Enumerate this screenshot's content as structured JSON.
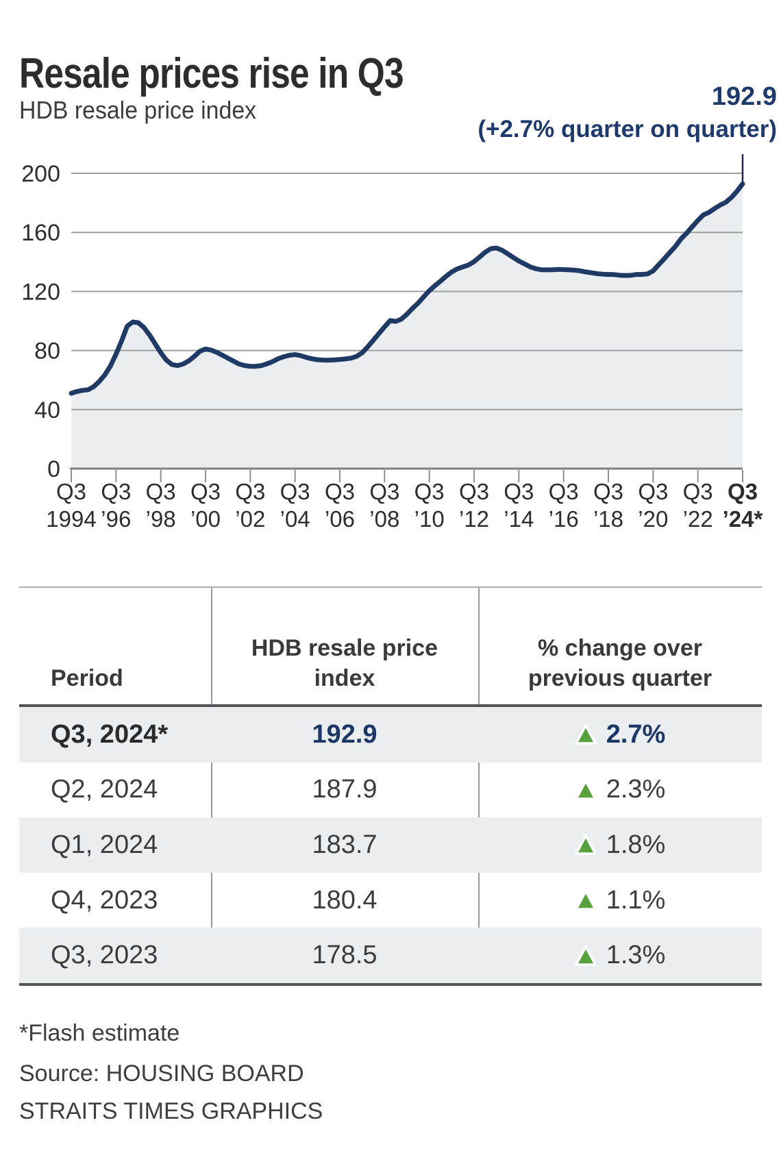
{
  "title": "Resale prices rise in Q3",
  "subtitle": "HDB resale price index",
  "annotation": {
    "value": "192.9",
    "note": "(+2.7% quarter on quarter)",
    "color": "#1e3a6c"
  },
  "chart_data": {
    "type": "area",
    "title": "HDB resale price index",
    "x_start": "Q3 1994",
    "x_end": "Q3 2024",
    "frequency": "quarterly",
    "ylim": [
      0,
      215
    ],
    "y_ticks": [
      0,
      40,
      80,
      120,
      160,
      200
    ],
    "grid": true,
    "legend": "none",
    "x_tick_labels": [
      {
        "line1": "Q3",
        "line2": "1994",
        "bold": false
      },
      {
        "line1": "Q3",
        "line2": "’96",
        "bold": false
      },
      {
        "line1": "Q3",
        "line2": "’98",
        "bold": false
      },
      {
        "line1": "Q3",
        "line2": "’00",
        "bold": false
      },
      {
        "line1": "Q3",
        "line2": "’02",
        "bold": false
      },
      {
        "line1": "Q3",
        "line2": "’04",
        "bold": false
      },
      {
        "line1": "Q3",
        "line2": "’06",
        "bold": false
      },
      {
        "line1": "Q3",
        "line2": "’08",
        "bold": false
      },
      {
        "line1": "Q3",
        "line2": "’10",
        "bold": false
      },
      {
        "line1": "Q3",
        "line2": "’12",
        "bold": false
      },
      {
        "line1": "Q3",
        "line2": "’14",
        "bold": false
      },
      {
        "line1": "Q3",
        "line2": "’16",
        "bold": false
      },
      {
        "line1": "Q3",
        "line2": "’18",
        "bold": false
      },
      {
        "line1": "Q3",
        "line2": "’20",
        "bold": false
      },
      {
        "line1": "Q3",
        "line2": "’22",
        "bold": false
      },
      {
        "line1": "Q3",
        "line2": "’24*",
        "bold": true
      }
    ],
    "series": [
      {
        "name": "HDB resale price index",
        "values": [
          51.0,
          52.2,
          53.0,
          53.4,
          55.5,
          59.0,
          63.5,
          69.5,
          77.5,
          86.5,
          96.5,
          99.3,
          98.8,
          95.5,
          90.5,
          84.5,
          78.5,
          73.5,
          70.5,
          69.8,
          70.8,
          73.0,
          76.0,
          79.5,
          81.0,
          80.3,
          78.8,
          76.8,
          74.8,
          72.8,
          70.8,
          69.8,
          69.3,
          69.3,
          69.8,
          71.0,
          72.5,
          74.5,
          75.8,
          76.8,
          77.2,
          76.5,
          75.3,
          74.4,
          73.8,
          73.5,
          73.4,
          73.6,
          73.9,
          74.3,
          74.8,
          76.0,
          78.5,
          82.5,
          87.0,
          91.5,
          96.0,
          100.3,
          99.7,
          101.2,
          104.6,
          108.6,
          112.1,
          116.4,
          120.5,
          123.9,
          127.0,
          130.3,
          133.2,
          135.3,
          136.6,
          137.9,
          140.2,
          143.4,
          146.6,
          149.0,
          149.4,
          147.9,
          145.5,
          143.0,
          140.6,
          138.7,
          136.7,
          135.4,
          134.7,
          134.6,
          134.7,
          134.9,
          134.8,
          134.6,
          134.4,
          133.9,
          133.2,
          132.6,
          132.0,
          131.7,
          131.5,
          131.4,
          131.0,
          130.8,
          130.9,
          131.5,
          131.5,
          131.9,
          133.9,
          138.1,
          142.2,
          146.4,
          150.6,
          155.7,
          159.5,
          163.9,
          168.1,
          171.9,
          173.6,
          176.2,
          178.5,
          180.4,
          183.7,
          187.9,
          192.9
        ]
      }
    ],
    "last_point_label": "192.9 (+2.7% quarter on quarter)",
    "colors": {
      "line": "#203a66",
      "fill": "#ebeef1",
      "grid": "#9e9e9e",
      "axis": "#7e8082",
      "tick": "#8d8f91",
      "label": "#2d2d2d",
      "callout": "#1a2b4a"
    }
  },
  "table": {
    "columns": [
      "Period",
      "HDB resale price index",
      "% change over previous quarter"
    ],
    "up_arrow_color": "#58a23e",
    "rows": [
      {
        "period": "Q3, 2024*",
        "index": "192.9",
        "direction": "up",
        "change": "2.7%",
        "highlight": true
      },
      {
        "period": "Q2, 2024",
        "index": "187.9",
        "direction": "up",
        "change": "2.3%",
        "highlight": false
      },
      {
        "period": "Q1, 2024",
        "index": "183.7",
        "direction": "up",
        "change": "1.8%",
        "highlight": false
      },
      {
        "period": "Q4, 2023",
        "index": "180.4",
        "direction": "up",
        "change": "1.1%",
        "highlight": false
      },
      {
        "period": "Q3, 2023",
        "index": "178.5",
        "direction": "up",
        "change": "1.3%",
        "highlight": false
      }
    ]
  },
  "footnote": "*Flash estimate",
  "source": "Source: HOUSING BOARD",
  "credit": "STRAITS TIMES GRAPHICS"
}
